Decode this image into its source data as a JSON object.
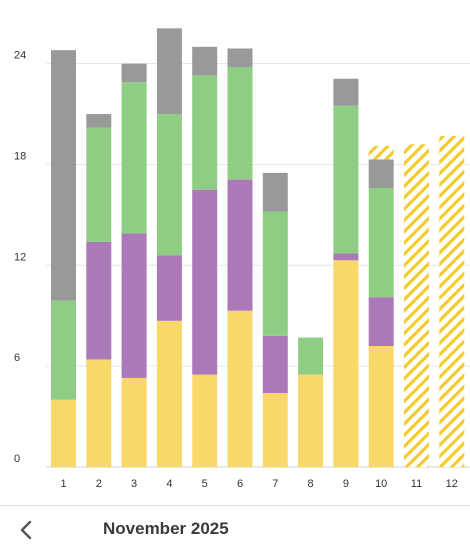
{
  "chart_data": {
    "type": "bar",
    "stacked": true,
    "categories": [
      "1",
      "2",
      "3",
      "4",
      "5",
      "6",
      "7",
      "8",
      "9",
      "10",
      "11",
      "12"
    ],
    "ylim": [
      0,
      26
    ],
    "yticks": [
      0,
      6,
      12,
      18,
      24
    ],
    "grid": true,
    "series": [
      {
        "color": "#f9d86a",
        "values": [
          4.0,
          6.4,
          5.3,
          8.7,
          5.5,
          9.3,
          4.4,
          5.5,
          12.3,
          7.2,
          0,
          0
        ]
      },
      {
        "color": "#ab79b7",
        "values": [
          0,
          7.0,
          8.6,
          3.9,
          11.0,
          7.8,
          3.4,
          0,
          0.4,
          2.9,
          0,
          0
        ]
      },
      {
        "color": "#90cd84",
        "values": [
          5.9,
          6.8,
          9.0,
          8.4,
          6.8,
          6.7,
          7.4,
          2.2,
          8.8,
          6.5,
          0,
          0
        ]
      },
      {
        "color": "#999999",
        "values": [
          14.9,
          0.8,
          1.1,
          5.1,
          1.7,
          1.1,
          2.3,
          0,
          1.6,
          1.7,
          0,
          0
        ]
      }
    ],
    "projected": {
      "color": "#f3cb2f",
      "values": [
        null,
        null,
        null,
        null,
        null,
        null,
        null,
        null,
        null,
        19.1,
        19.2,
        19.7
      ]
    }
  },
  "footer": {
    "month_label": "November 2025",
    "back_icon": "chevron-left-icon"
  }
}
